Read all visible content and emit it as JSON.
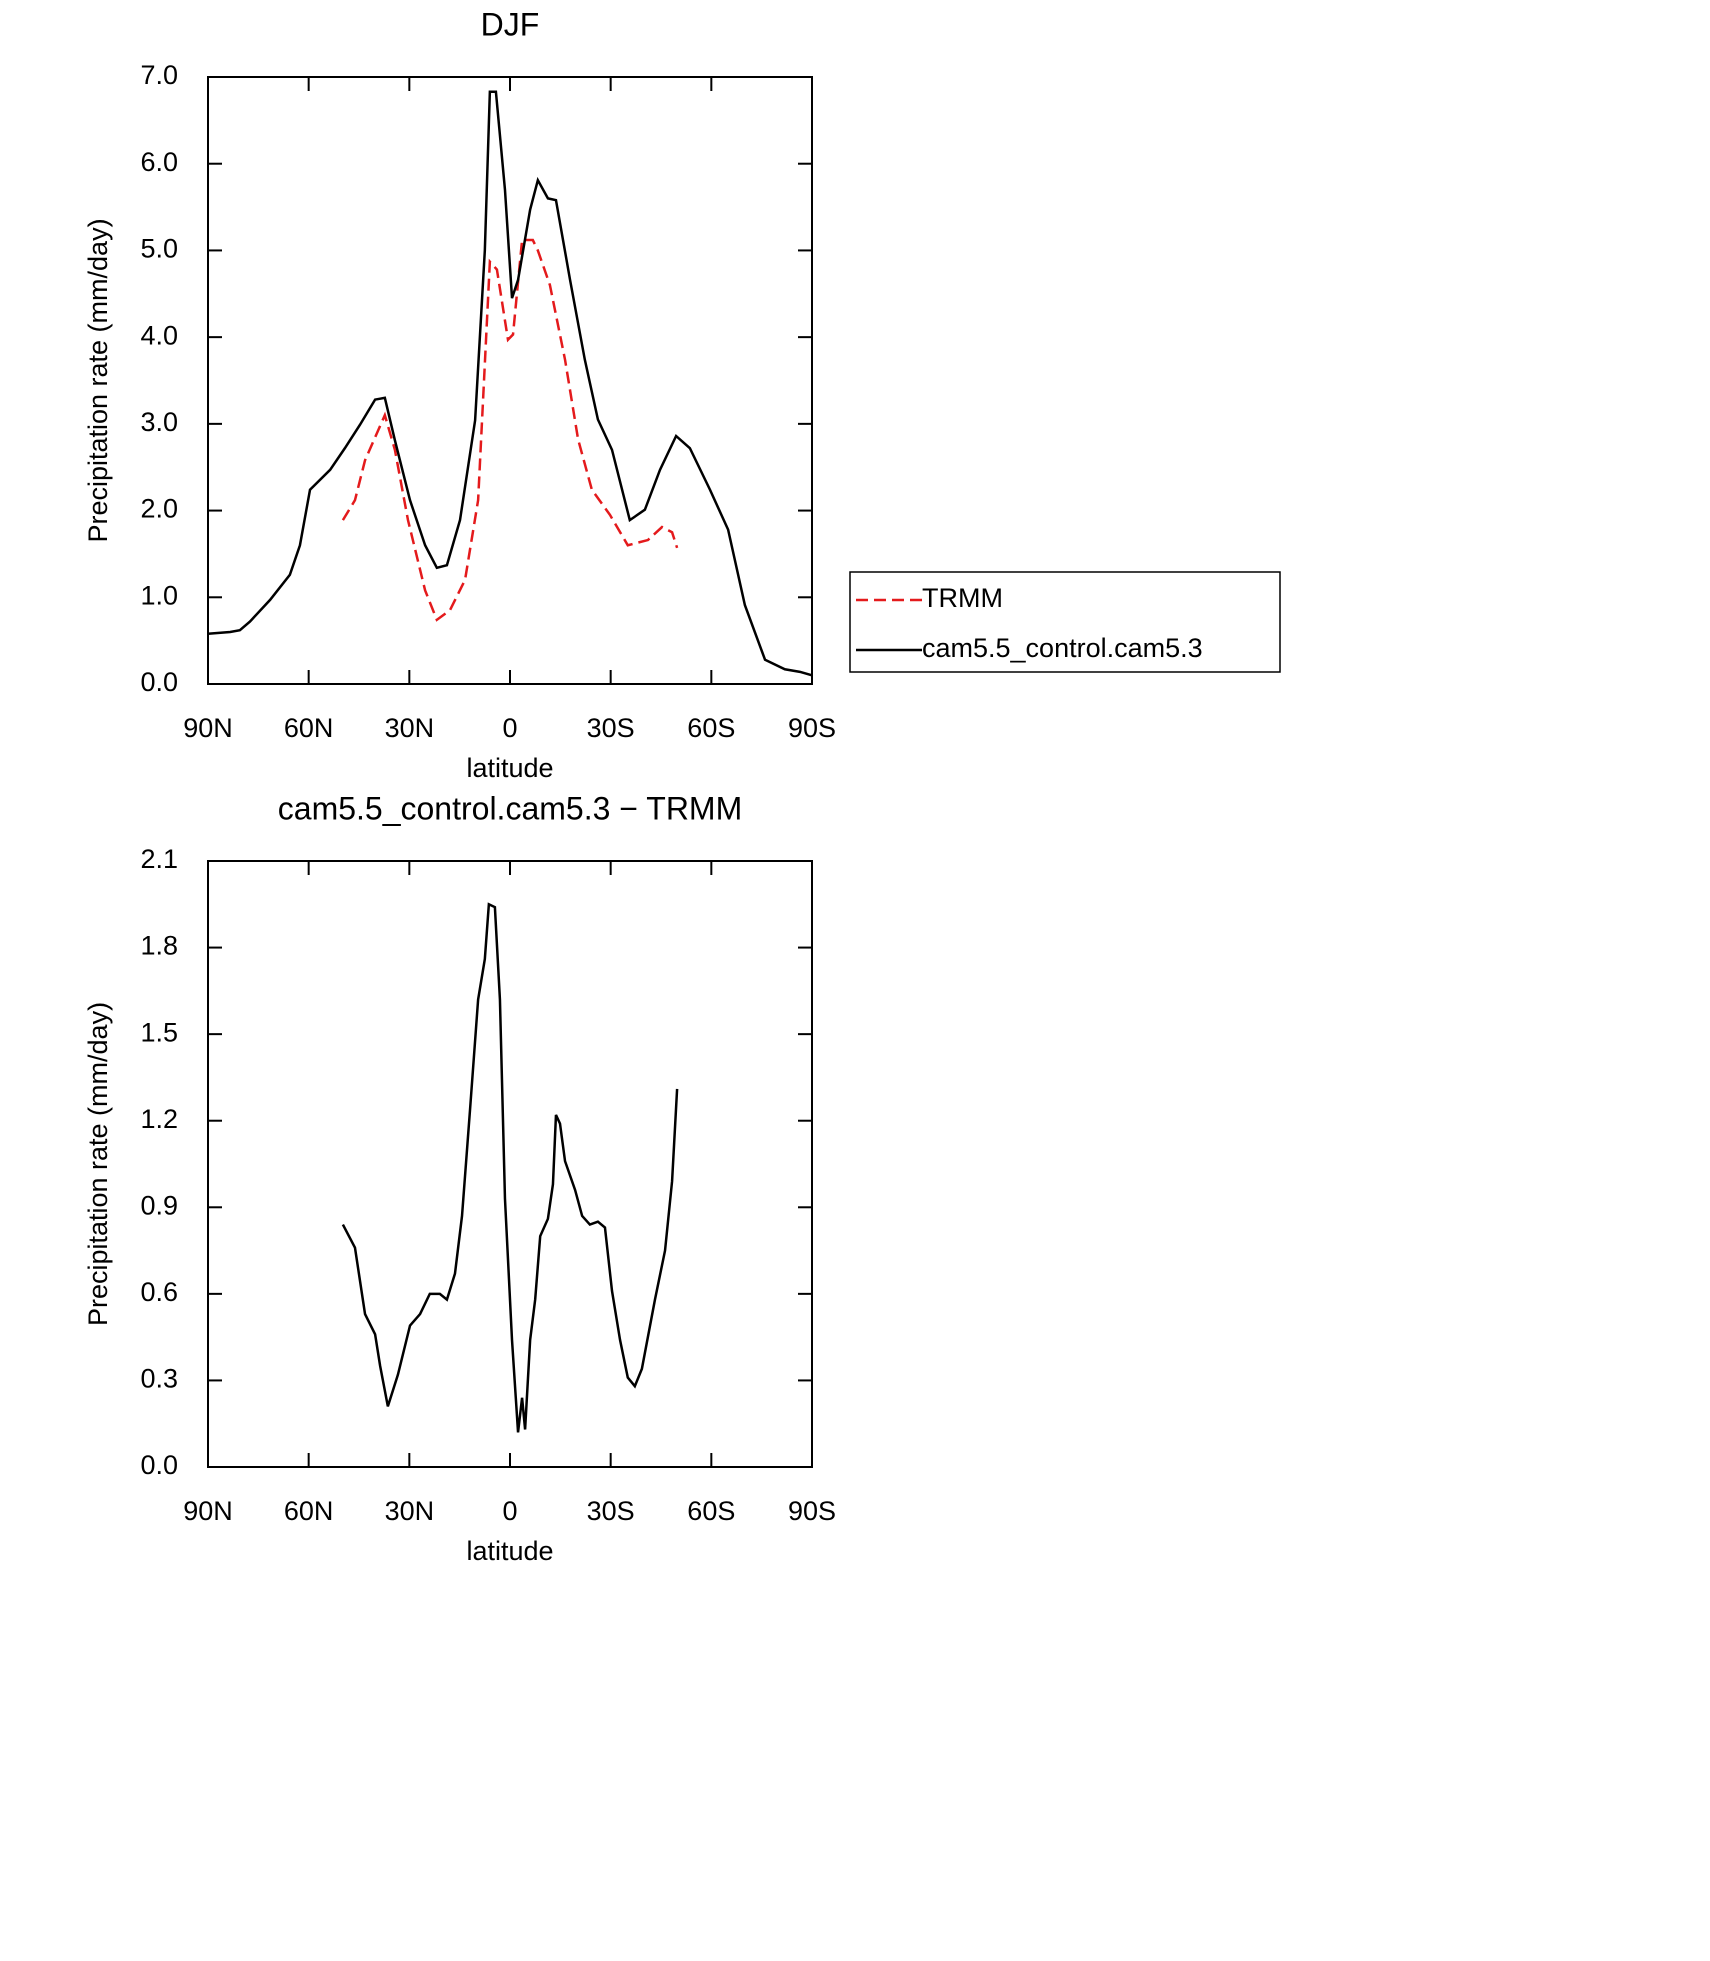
{
  "chart_data": [
    {
      "type": "line",
      "title": "DJF",
      "xlabel": "latitude",
      "ylabel": "Precipitation rate (mm/day)",
      "xlim": [
        90,
        -90
      ],
      "xticks": [
        {
          "value": 90,
          "label": "90N"
        },
        {
          "value": 60,
          "label": "60N"
        },
        {
          "value": 30,
          "label": "30N"
        },
        0,
        {
          "value": -30,
          "label": "30S"
        },
        {
          "value": -60,
          "label": "60S"
        },
        {
          "value": -90,
          "label": "90S"
        }
      ],
      "ylim": [
        0,
        7
      ],
      "yticks": [
        {
          "value": 0,
          "label": "0.0"
        },
        {
          "value": 1,
          "label": "1.0"
        },
        {
          "value": 2,
          "label": "2.0"
        },
        {
          "value": 3,
          "label": "3.0"
        },
        {
          "value": 4,
          "label": "4.0"
        },
        {
          "value": 5,
          "label": "5.0"
        },
        {
          "value": 6,
          "label": "6.0"
        },
        {
          "value": 7,
          "label": "7.0"
        }
      ],
      "legend": "right",
      "series": [
        {
          "name": "TRMM",
          "color": "#e41a1c",
          "linestyle": "dashed",
          "x": [
            49.8,
            46.2,
            43.2,
            37.3,
            34.3,
            30.4,
            25.3,
            21.8,
            17.9,
            13.4,
            9.5,
            6.0,
            3.9,
            0.6,
            -0.9,
            -3.6,
            -6.8,
            -8.3,
            -11.9,
            -16.4,
            -20.3,
            -24.4,
            -29.8,
            -35.1,
            -41.1,
            -45.3,
            -48.3,
            -49.8
          ],
          "values": [
            1.89,
            2.12,
            2.58,
            3.1,
            2.7,
            1.89,
            1.08,
            0.74,
            0.85,
            1.2,
            2.12,
            4.87,
            4.78,
            3.97,
            4.03,
            5.12,
            5.12,
            5.0,
            4.6,
            3.74,
            2.82,
            2.24,
            1.95,
            1.6,
            1.66,
            1.81,
            1.75,
            1.57
          ]
        },
        {
          "name": "cam5.5_control.cam5.3",
          "color": "#000000",
          "linestyle": "solid",
          "x": [
            90,
            83.4,
            80.5,
            77.5,
            71.5,
            65.6,
            62.6,
            59.6,
            53.6,
            49.2,
            44.7,
            40.2,
            37.3,
            34.3,
            29.8,
            25.3,
            21.8,
            18.8,
            14.9,
            10.4,
            7.5,
            6.0,
            4.2,
            1.5,
            -0.6,
            -2.4,
            -6.0,
            -8.3,
            -11.3,
            -13.7,
            -17.9,
            -22.3,
            -26.2,
            -30.4,
            -35.7,
            -40.2,
            -44.7,
            -49.5,
            -53.6,
            -59.6,
            -65.0,
            -70.0,
            -76.0,
            -81.9,
            -86.4,
            -90
          ],
          "values": [
            0.58,
            0.6,
            0.62,
            0.72,
            0.97,
            1.26,
            1.6,
            2.24,
            2.47,
            2.72,
            2.99,
            3.28,
            3.3,
            2.81,
            2.12,
            1.6,
            1.34,
            1.37,
            1.89,
            3.04,
            5.0,
            6.83,
            6.83,
            5.7,
            4.45,
            4.66,
            5.47,
            5.81,
            5.6,
            5.58,
            4.66,
            3.74,
            3.05,
            2.7,
            1.89,
            2.01,
            2.47,
            2.86,
            2.72,
            2.24,
            1.78,
            0.91,
            0.28,
            0.17,
            0.14,
            0.1
          ]
        }
      ]
    },
    {
      "type": "line",
      "title": "cam5.5_control.cam5.3 − TRMM",
      "xlabel": "latitude",
      "ylabel": "Precipitation rate (mm/day)",
      "xlim": [
        90,
        -90
      ],
      "xticks": [
        {
          "value": 90,
          "label": "90N"
        },
        {
          "value": 60,
          "label": "60N"
        },
        {
          "value": 30,
          "label": "30N"
        },
        0,
        {
          "value": -30,
          "label": "30S"
        },
        {
          "value": -60,
          "label": "60S"
        },
        {
          "value": -90,
          "label": "90S"
        }
      ],
      "ylim": [
        0,
        2.1
      ],
      "yticks": [
        {
          "value": 0,
          "label": "0.0"
        },
        0.3,
        0.6,
        0.9,
        1.2,
        1.5,
        1.8,
        2.1
      ],
      "series": [
        {
          "color": "#000000",
          "linestyle": "solid",
          "x": [
            49.8,
            46.2,
            43.2,
            40.2,
            38.7,
            36.4,
            33.4,
            29.8,
            26.8,
            23.9,
            20.9,
            18.8,
            16.4,
            14.3,
            11.9,
            9.5,
            7.5,
            6.3,
            4.5,
            3.0,
            1.5,
            -0.6,
            -2.4,
            -3.6,
            -4.5,
            -6.0,
            -7.5,
            -9.0,
            -11.3,
            -12.8,
            -13.7,
            -14.9,
            -16.4,
            -19.4,
            -21.5,
            -23.8,
            -26.2,
            -28.3,
            -30.4,
            -32.8,
            -35.1,
            -37.2,
            -39.3,
            -43.2,
            -46.2,
            -48.3,
            -49.8
          ],
          "values": [
            0.84,
            0.76,
            0.53,
            0.46,
            0.35,
            0.21,
            0.32,
            0.49,
            0.53,
            0.6,
            0.6,
            0.58,
            0.67,
            0.87,
            1.24,
            1.62,
            1.76,
            1.95,
            1.94,
            1.62,
            0.93,
            0.44,
            0.12,
            0.24,
            0.13,
            0.44,
            0.58,
            0.8,
            0.86,
            0.98,
            1.22,
            1.19,
            1.06,
            0.96,
            0.87,
            0.84,
            0.85,
            0.83,
            0.61,
            0.44,
            0.31,
            0.28,
            0.34,
            0.58,
            0.75,
            0.99,
            1.31
          ]
        }
      ]
    }
  ]
}
